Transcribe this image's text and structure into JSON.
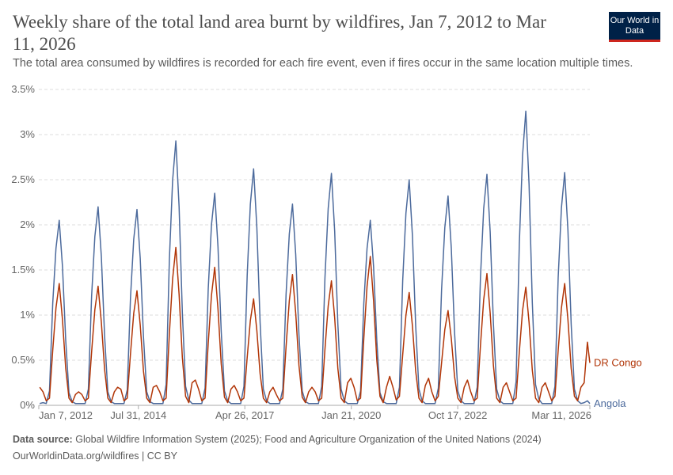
{
  "header": {
    "title": "Weekly share of the total land area burnt by wildfires, Jan 7, 2012 to Mar 11, 2026",
    "subtitle": "The total area consumed by wildfires is recorded for each fire event, even if fires occur in the same location multiple times.",
    "logo": "Our World in Data"
  },
  "footer": {
    "source_label": "Data source:",
    "source_text": "Global Wildfire Information System (2025); Food and Agriculture Organization of the United Nations (2024)",
    "url_license": "OurWorldinData.org/wildfires | CC BY"
  },
  "chart_data": {
    "type": "line",
    "title": "Weekly share of the total land area burnt by wildfires, Jan 7, 2012 to Mar 11, 2026",
    "ylabel": "",
    "xlabel": "",
    "ylim": [
      0,
      3.5
    ],
    "y_unit": "%",
    "y_ticks": [
      "0%",
      "0.5%",
      "1%",
      "1.5%",
      "2%",
      "2.5%",
      "3%",
      "3.5%"
    ],
    "x_ticks": [
      {
        "label": "Jan 7, 2012",
        "date": "2012-01-07"
      },
      {
        "label": "Jul 31, 2014",
        "date": "2014-07-31"
      },
      {
        "label": "Apr 26, 2017",
        "date": "2017-04-26"
      },
      {
        "label": "Jan 21, 2020",
        "date": "2020-01-21"
      },
      {
        "label": "Oct 17, 2022",
        "date": "2022-10-17"
      },
      {
        "label": "Mar 11, 2026",
        "date": "2026-03-11"
      }
    ],
    "xlim": [
      "2012-01-07",
      "2026-03-11"
    ],
    "grid": "horizontal dashed",
    "legend": "right, line-end labels",
    "resolution_note_months": "monthly approximations of weekly values",
    "series": [
      {
        "name": "Angola",
        "color": "#4c6a9c",
        "by_year": {
          "2012": [
            0.02,
            0.03,
            0.02,
            0.16,
            1.13,
            1.74,
            2.05,
            1.54,
            0.72,
            0.14,
            0.04,
            0.02
          ],
          "2013": [
            0.02,
            0.02,
            0.02,
            0.18,
            1.21,
            1.87,
            2.2,
            1.65,
            0.77,
            0.15,
            0.04,
            0.02
          ],
          "2014": [
            0.02,
            0.02,
            0.02,
            0.17,
            1.19,
            1.84,
            2.17,
            1.63,
            0.76,
            0.15,
            0.04,
            0.02
          ],
          "2015": [
            0.02,
            0.02,
            0.02,
            0.23,
            1.61,
            2.49,
            2.93,
            2.2,
            1.03,
            0.21,
            0.06,
            0.02
          ],
          "2016": [
            0.02,
            0.02,
            0.02,
            0.19,
            1.29,
            2.0,
            2.35,
            1.76,
            0.82,
            0.16,
            0.05,
            0.02
          ],
          "2017": [
            0.02,
            0.02,
            0.02,
            0.21,
            1.44,
            2.23,
            2.62,
            1.97,
            0.92,
            0.18,
            0.05,
            0.02
          ],
          "2018": [
            0.02,
            0.02,
            0.02,
            0.18,
            1.23,
            1.9,
            2.23,
            1.67,
            0.78,
            0.16,
            0.04,
            0.02
          ],
          "2019": [
            0.02,
            0.02,
            0.02,
            0.21,
            1.41,
            2.18,
            2.57,
            1.93,
            0.9,
            0.18,
            0.05,
            0.02
          ],
          "2020": [
            0.02,
            0.02,
            0.02,
            0.16,
            1.13,
            1.74,
            2.05,
            1.54,
            0.72,
            0.14,
            0.04,
            0.02
          ],
          "2021": [
            0.02,
            0.02,
            0.02,
            0.2,
            1.38,
            2.13,
            2.5,
            1.88,
            0.88,
            0.18,
            0.05,
            0.02
          ],
          "2022": [
            0.02,
            0.02,
            0.02,
            0.19,
            1.28,
            1.97,
            2.32,
            1.74,
            0.81,
            0.16,
            0.05,
            0.02
          ],
          "2023": [
            0.02,
            0.02,
            0.02,
            0.2,
            1.41,
            2.18,
            2.56,
            1.92,
            0.9,
            0.18,
            0.05,
            0.02
          ],
          "2024": [
            0.02,
            0.02,
            0.02,
            0.26,
            1.79,
            2.77,
            3.26,
            2.45,
            1.14,
            0.23,
            0.07,
            0.02
          ],
          "2025": [
            0.02,
            0.02,
            0.02,
            0.21,
            1.42,
            2.19,
            2.58,
            1.94,
            0.9,
            0.18,
            0.05,
            0.02
          ],
          "2026": [
            0.03,
            0.05,
            0.02
          ]
        }
      },
      {
        "name": "DR Congo",
        "color": "#b13507",
        "by_year": {
          "2012": [
            0.2,
            0.15,
            0.05,
            0.08,
            0.61,
            1.08,
            1.35,
            0.95,
            0.41,
            0.08,
            0.03,
            0.12
          ],
          "2013": [
            0.15,
            0.12,
            0.05,
            0.08,
            0.59,
            1.06,
            1.32,
            0.92,
            0.4,
            0.08,
            0.03,
            0.15
          ],
          "2014": [
            0.2,
            0.18,
            0.05,
            0.08,
            0.57,
            1.02,
            1.27,
            0.89,
            0.38,
            0.08,
            0.03,
            0.2
          ],
          "2015": [
            0.22,
            0.15,
            0.05,
            0.08,
            0.79,
            1.4,
            1.75,
            1.23,
            0.53,
            0.1,
            0.03,
            0.25
          ],
          "2016": [
            0.28,
            0.18,
            0.05,
            0.08,
            0.69,
            1.22,
            1.53,
            1.07,
            0.46,
            0.09,
            0.03,
            0.18
          ],
          "2017": [
            0.22,
            0.15,
            0.05,
            0.08,
            0.53,
            0.94,
            1.18,
            0.83,
            0.35,
            0.08,
            0.03,
            0.15
          ],
          "2018": [
            0.2,
            0.12,
            0.05,
            0.08,
            0.65,
            1.16,
            1.45,
            1.02,
            0.44,
            0.09,
            0.03,
            0.15
          ],
          "2019": [
            0.2,
            0.15,
            0.05,
            0.08,
            0.62,
            1.1,
            1.38,
            0.97,
            0.41,
            0.08,
            0.03,
            0.25
          ],
          "2020": [
            0.3,
            0.2,
            0.05,
            0.08,
            0.74,
            1.32,
            1.65,
            1.16,
            0.5,
            0.1,
            0.03,
            0.2
          ],
          "2021": [
            0.32,
            0.2,
            0.06,
            0.1,
            0.56,
            1.0,
            1.25,
            0.88,
            0.38,
            0.08,
            0.03,
            0.22
          ],
          "2022": [
            0.3,
            0.15,
            0.05,
            0.1,
            0.47,
            0.84,
            1.05,
            0.74,
            0.32,
            0.08,
            0.03,
            0.2
          ],
          "2023": [
            0.28,
            0.15,
            0.05,
            0.08,
            0.66,
            1.17,
            1.46,
            1.02,
            0.44,
            0.08,
            0.03,
            0.2
          ],
          "2024": [
            0.25,
            0.15,
            0.05,
            0.08,
            0.59,
            1.05,
            1.31,
            0.92,
            0.39,
            0.08,
            0.03,
            0.2
          ],
          "2025": [
            0.25,
            0.15,
            0.05,
            0.1,
            0.61,
            1.08,
            1.35,
            0.95,
            0.41,
            0.1,
            0.05,
            0.2
          ],
          "2026": [
            0.25,
            0.7,
            0.47
          ]
        }
      }
    ]
  }
}
